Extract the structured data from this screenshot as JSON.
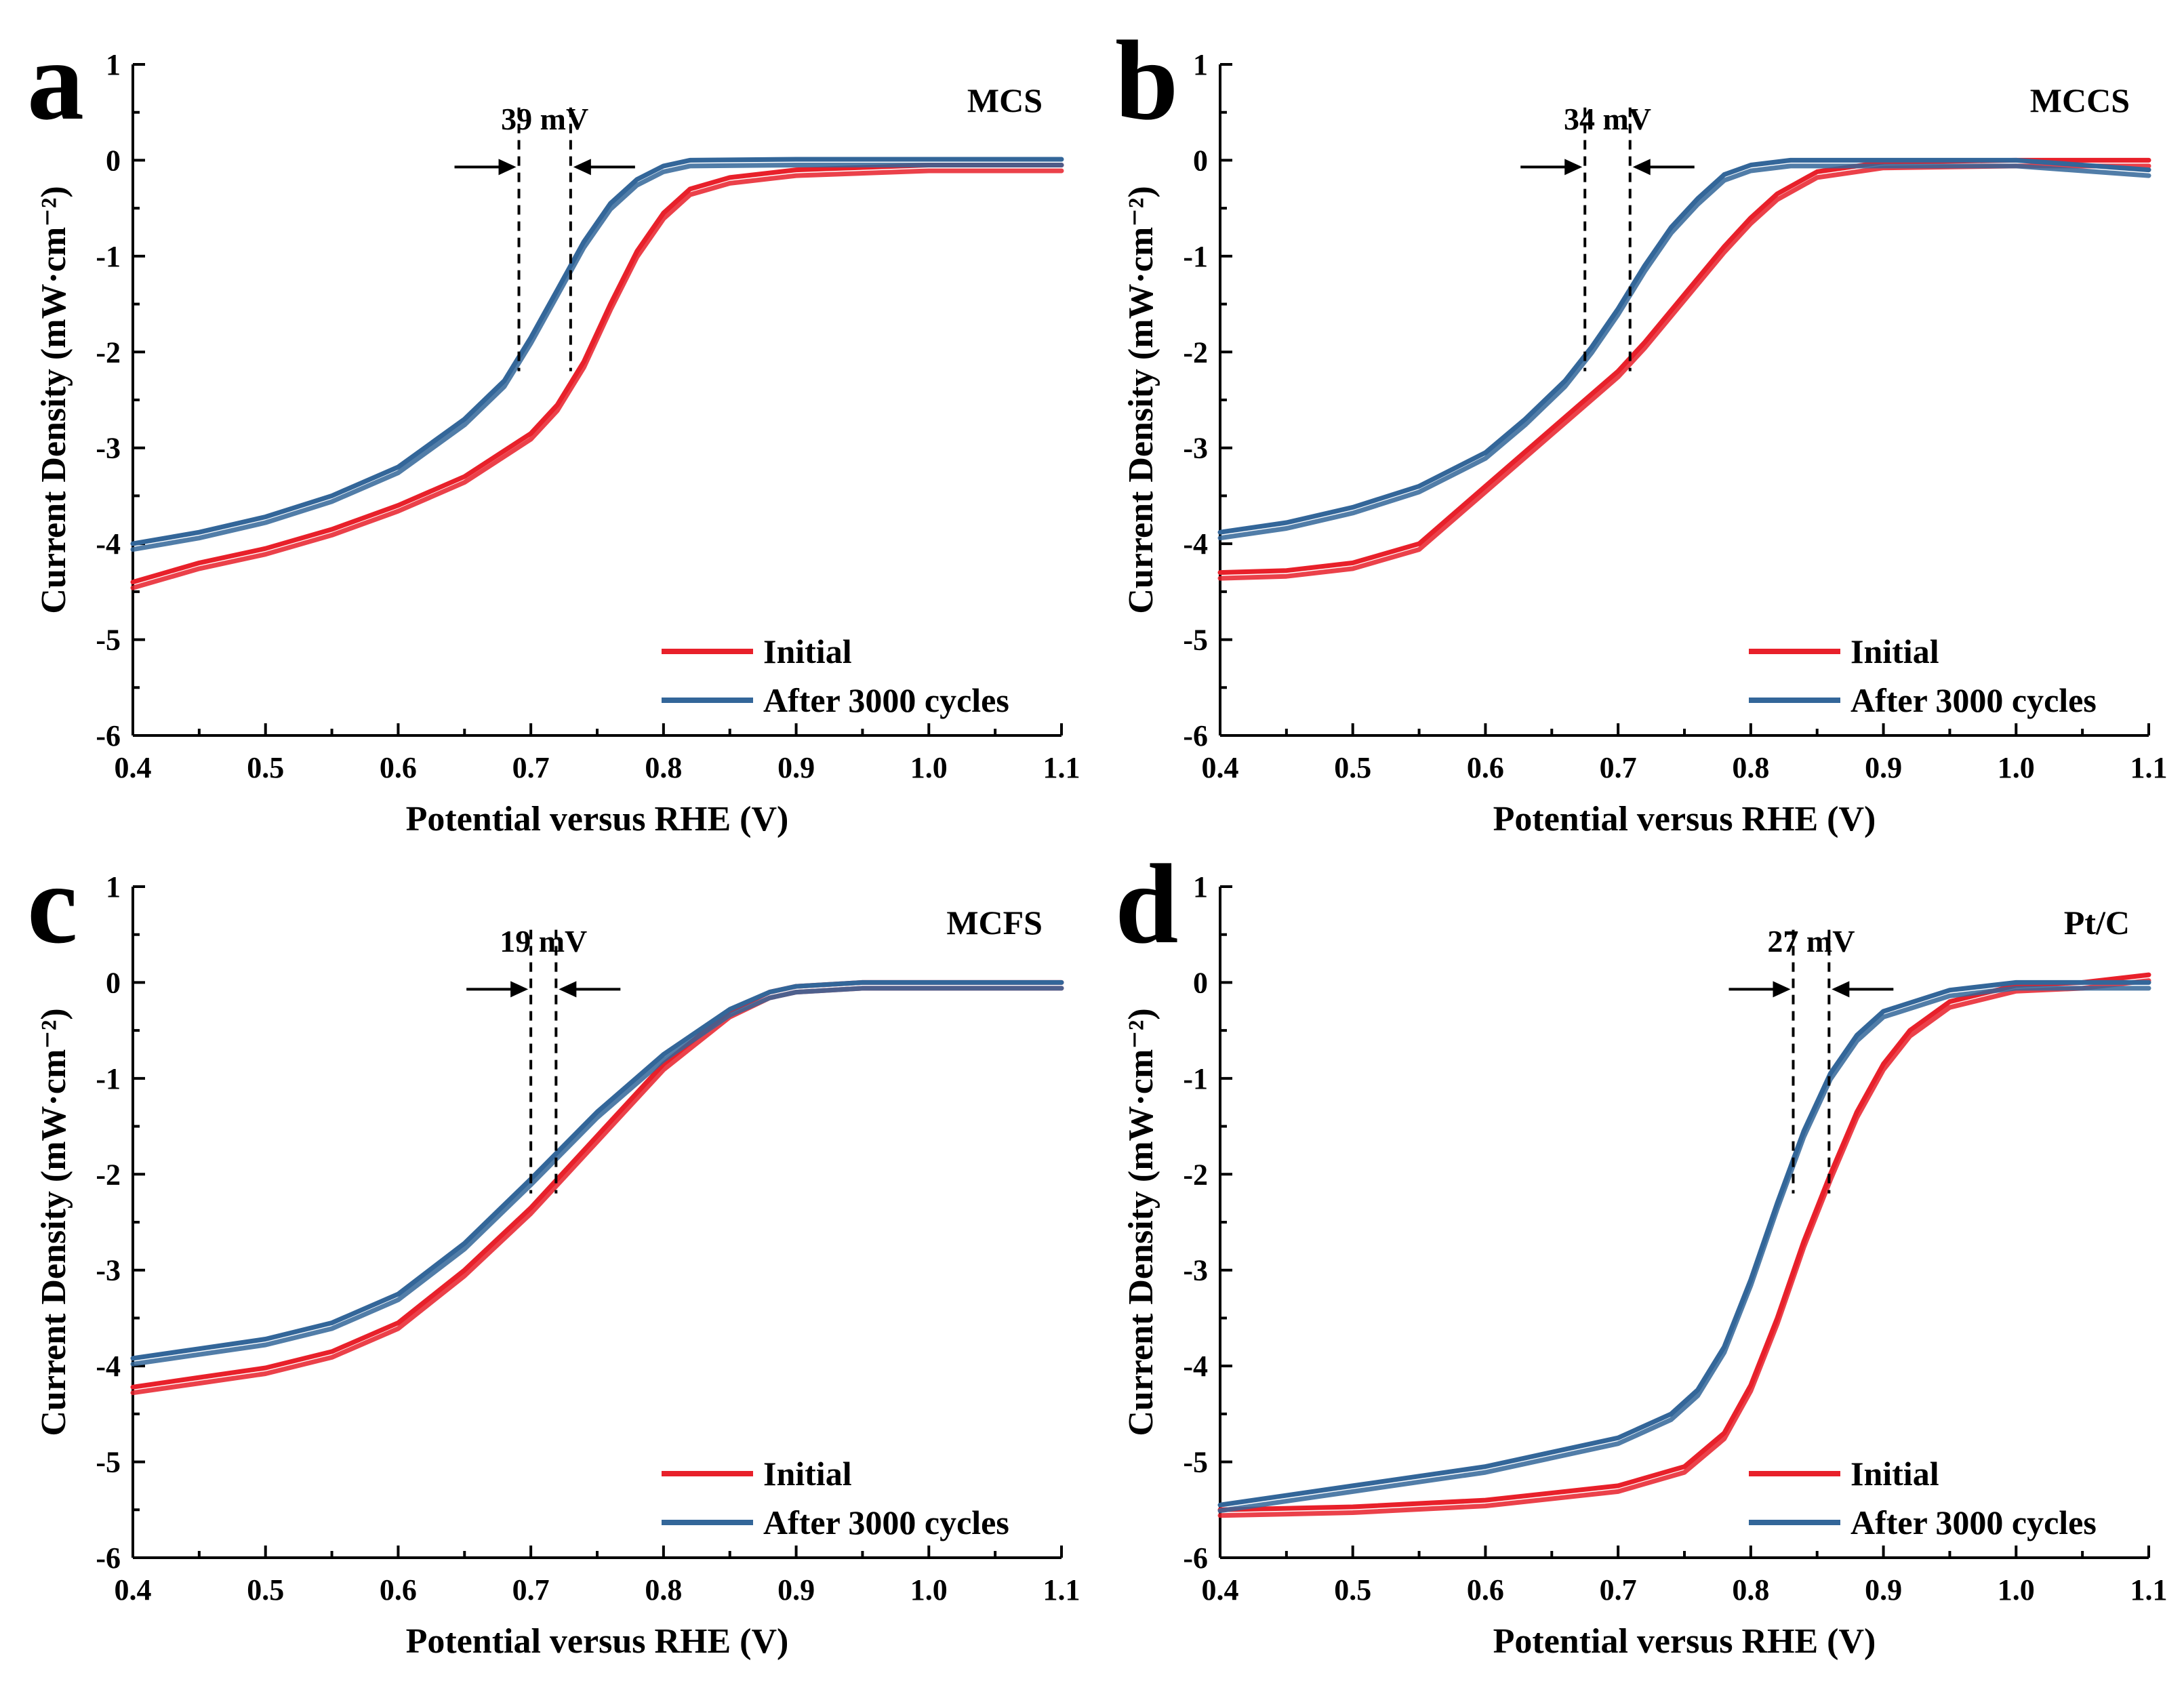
{
  "figure": {
    "xlabel": "Potential versus RHE (V)",
    "ylabel": "Current Density (mW·cm⁻²)",
    "x_ticks": [
      "0.4",
      "0.5",
      "0.6",
      "0.7",
      "0.8",
      "0.9",
      "1.0",
      "1.1"
    ],
    "y_ticks": [
      "1",
      "0",
      "-1",
      "-2",
      "-3",
      "-4",
      "-5",
      "-6"
    ],
    "legend": {
      "initial": "Initial",
      "after": "After 3000 cycles"
    },
    "colors": {
      "initial": "#e8202a",
      "after": "#336699"
    }
  },
  "chart_data": [
    {
      "panel": "a",
      "type": "line",
      "sample": "MCS",
      "delta_label": "39 mV",
      "xlim": [
        0.4,
        1.1
      ],
      "ylim": [
        -6,
        1
      ],
      "half_wave": [
        0.691,
        0.73
      ],
      "series": [
        {
          "name": "Initial",
          "x": [
            0.4,
            0.45,
            0.5,
            0.55,
            0.6,
            0.65,
            0.7,
            0.72,
            0.74,
            0.76,
            0.78,
            0.8,
            0.82,
            0.85,
            0.9,
            1.0,
            1.1
          ],
          "y": [
            -4.4,
            -4.2,
            -4.05,
            -3.85,
            -3.6,
            -3.3,
            -2.85,
            -2.55,
            -2.1,
            -1.5,
            -0.95,
            -0.55,
            -0.3,
            -0.18,
            -0.1,
            -0.05,
            -0.05
          ]
        },
        {
          "name": "After 3000 cycles",
          "x": [
            0.4,
            0.45,
            0.5,
            0.55,
            0.6,
            0.65,
            0.68,
            0.7,
            0.72,
            0.74,
            0.76,
            0.78,
            0.8,
            0.82,
            0.9,
            1.0,
            1.1
          ],
          "y": [
            -4.0,
            -3.88,
            -3.72,
            -3.5,
            -3.2,
            -2.7,
            -2.3,
            -1.85,
            -1.35,
            -0.85,
            -0.45,
            -0.2,
            -0.06,
            0.0,
            0.01,
            0.01,
            0.01
          ]
        }
      ]
    },
    {
      "panel": "b",
      "type": "line",
      "sample": "MCCS",
      "delta_label": "34 mV",
      "xlim": [
        0.4,
        1.1
      ],
      "ylim": [
        -6,
        1
      ],
      "half_wave": [
        0.675,
        0.709
      ],
      "series": [
        {
          "name": "Initial",
          "x": [
            0.4,
            0.45,
            0.5,
            0.55,
            0.6,
            0.65,
            0.7,
            0.72,
            0.75,
            0.78,
            0.8,
            0.82,
            0.85,
            0.9,
            1.0,
            1.1
          ],
          "y": [
            -4.3,
            -4.28,
            -4.2,
            -4.0,
            -3.4,
            -2.8,
            -2.2,
            -1.9,
            -1.4,
            -0.9,
            -0.6,
            -0.35,
            -0.12,
            -0.02,
            0.0,
            0.0
          ]
        },
        {
          "name": "After 3000 cycles",
          "x": [
            0.4,
            0.45,
            0.5,
            0.55,
            0.6,
            0.63,
            0.66,
            0.68,
            0.7,
            0.72,
            0.74,
            0.76,
            0.78,
            0.8,
            0.83,
            0.9,
            1.0,
            1.1
          ],
          "y": [
            -3.88,
            -3.78,
            -3.62,
            -3.4,
            -3.05,
            -2.7,
            -2.3,
            -1.95,
            -1.55,
            -1.1,
            -0.7,
            -0.4,
            -0.15,
            -0.05,
            0.0,
            0.0,
            0.0,
            -0.1
          ]
        }
      ]
    },
    {
      "panel": "c",
      "type": "line",
      "sample": "MCFS",
      "delta_label": "19 mV",
      "xlim": [
        0.4,
        1.1
      ],
      "ylim": [
        -6,
        1
      ],
      "half_wave": [
        0.7,
        0.719
      ],
      "series": [
        {
          "name": "Initial",
          "x": [
            0.4,
            0.45,
            0.5,
            0.55,
            0.6,
            0.65,
            0.7,
            0.75,
            0.8,
            0.85,
            0.88,
            0.9,
            0.95,
            1.0,
            1.1
          ],
          "y": [
            -4.22,
            -4.12,
            -4.02,
            -3.85,
            -3.55,
            -3.0,
            -2.35,
            -1.6,
            -0.85,
            -0.3,
            -0.1,
            -0.04,
            0.0,
            0.0,
            0.0
          ]
        },
        {
          "name": "After 3000 cycles",
          "x": [
            0.4,
            0.45,
            0.5,
            0.55,
            0.6,
            0.65,
            0.7,
            0.75,
            0.8,
            0.85,
            0.88,
            0.9,
            0.95,
            1.0,
            1.1
          ],
          "y": [
            -3.92,
            -3.82,
            -3.72,
            -3.55,
            -3.25,
            -2.72,
            -2.05,
            -1.35,
            -0.75,
            -0.28,
            -0.1,
            -0.04,
            0.0,
            0.0,
            0.0
          ]
        }
      ]
    },
    {
      "panel": "d",
      "type": "line",
      "sample": "Pt/C",
      "delta_label": "27 mV",
      "xlim": [
        0.4,
        1.1
      ],
      "ylim": [
        -6,
        1
      ],
      "half_wave": [
        0.832,
        0.859
      ],
      "series": [
        {
          "name": "Initial",
          "x": [
            0.4,
            0.5,
            0.6,
            0.7,
            0.75,
            0.78,
            0.8,
            0.82,
            0.84,
            0.86,
            0.88,
            0.9,
            0.92,
            0.95,
            1.0,
            1.05,
            1.1
          ],
          "y": [
            -5.5,
            -5.47,
            -5.4,
            -5.25,
            -5.05,
            -4.7,
            -4.2,
            -3.5,
            -2.7,
            -2.0,
            -1.35,
            -0.85,
            -0.5,
            -0.2,
            -0.03,
            0.0,
            0.08
          ]
        },
        {
          "name": "After 3000 cycles",
          "x": [
            0.4,
            0.5,
            0.6,
            0.7,
            0.74,
            0.76,
            0.78,
            0.8,
            0.82,
            0.84,
            0.86,
            0.88,
            0.9,
            0.95,
            1.0,
            1.05,
            1.1
          ],
          "y": [
            -5.45,
            -5.25,
            -5.05,
            -4.75,
            -4.5,
            -4.25,
            -3.8,
            -3.1,
            -2.3,
            -1.55,
            -0.95,
            -0.55,
            -0.3,
            -0.08,
            0.0,
            0.0,
            0.0
          ]
        }
      ]
    }
  ]
}
